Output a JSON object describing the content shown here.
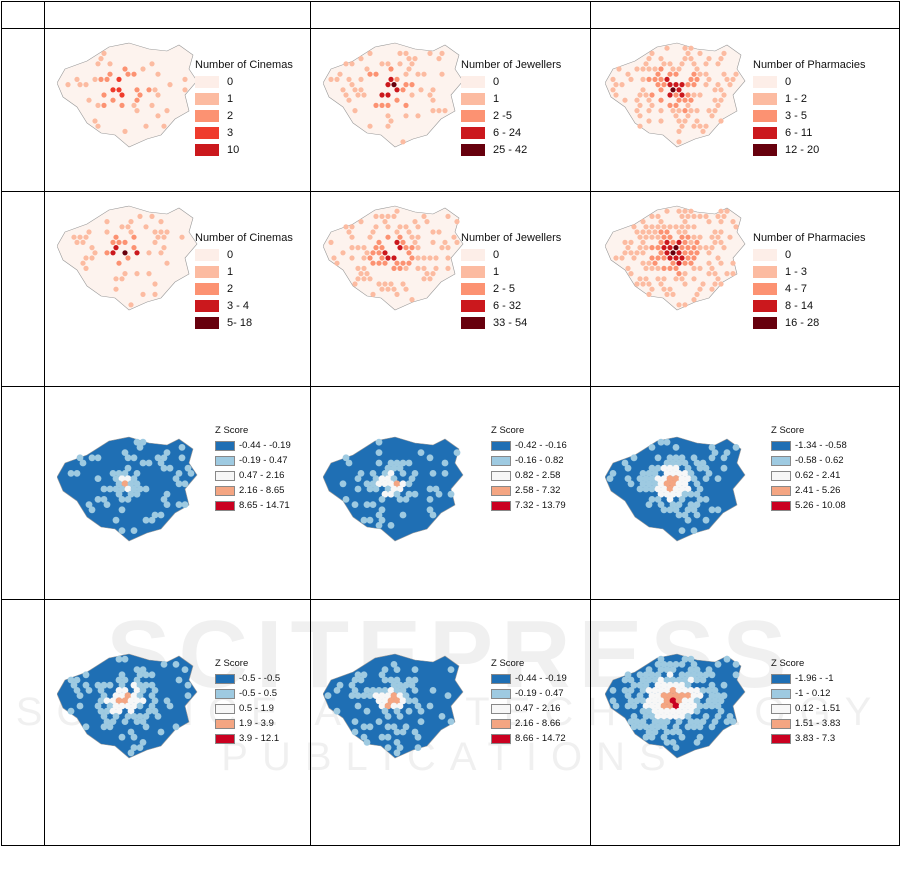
{
  "watermark": {
    "main": "SCITEPRESS",
    "sub": "SCIENCE AND TECHNOLOGY PUBLICATIONS"
  },
  "colors": {
    "count": [
      "#fdeee8",
      "#fcbba1",
      "#fc9272",
      "#ef3b2c",
      "#cb181d",
      "#67000d"
    ],
    "z": [
      "#1f6fb4",
      "#9ecae1",
      "#f7f7f7",
      "#f4a582",
      "#ca0020"
    ]
  },
  "rows": [
    {
      "cells": [
        {
          "type": "count",
          "title": "Number of Cinemas",
          "items": [
            {
              "label": "0",
              "color": "#fdeee8"
            },
            {
              "label": "1",
              "color": "#fcbba1"
            },
            {
              "label": "2",
              "color": "#fc9272"
            },
            {
              "label": "3",
              "color": "#ef3b2c"
            },
            {
              "label": "10",
              "color": "#cb181d"
            }
          ],
          "density": 0.25
        },
        {
          "type": "count",
          "title": "Number of Jewellers",
          "items": [
            {
              "label": "0",
              "color": "#fdeee8"
            },
            {
              "label": "1",
              "color": "#fcbba1"
            },
            {
              "label": "2 -5",
              "color": "#fc9272"
            },
            {
              "label": "6 - 24",
              "color": "#cb181d"
            },
            {
              "label": "25 - 42",
              "color": "#67000d"
            }
          ],
          "density": 0.4
        },
        {
          "type": "count",
          "title": "Number of Pharmacies",
          "items": [
            {
              "label": "0",
              "color": "#fdeee8"
            },
            {
              "label": "1 - 2",
              "color": "#fcbba1"
            },
            {
              "label": "3 - 5",
              "color": "#fc9272"
            },
            {
              "label": "6 - 11",
              "color": "#cb181d"
            },
            {
              "label": "12 - 20",
              "color": "#67000d"
            }
          ],
          "density": 0.75
        }
      ]
    },
    {
      "cells": [
        {
          "type": "count",
          "title": "Number of Cinemas",
          "items": [
            {
              "label": "0",
              "color": "#fdeee8"
            },
            {
              "label": "1",
              "color": "#fcbba1"
            },
            {
              "label": "2",
              "color": "#fc9272"
            },
            {
              "label": "3 - 4",
              "color": "#cb181d"
            },
            {
              "label": "5- 18",
              "color": "#67000d"
            }
          ],
          "density": 0.3
        },
        {
          "type": "count",
          "title": "Number of Jewellers",
          "items": [
            {
              "label": "0",
              "color": "#fdeee8"
            },
            {
              "label": "1",
              "color": "#fcbba1"
            },
            {
              "label": "2 - 5",
              "color": "#fc9272"
            },
            {
              "label": "6 - 32",
              "color": "#cb181d"
            },
            {
              "label": "33 - 54",
              "color": "#67000d"
            }
          ],
          "density": 0.55
        },
        {
          "type": "count",
          "title": "Number of Pharmacies",
          "items": [
            {
              "label": "0",
              "color": "#fdeee8"
            },
            {
              "label": "1 - 3",
              "color": "#fcbba1"
            },
            {
              "label": "4 - 7",
              "color": "#fc9272"
            },
            {
              "label": "8 - 14",
              "color": "#cb181d"
            },
            {
              "label": "16 - 28",
              "color": "#67000d"
            }
          ],
          "density": 0.9
        }
      ]
    },
    {
      "cells": [
        {
          "type": "z",
          "title": "Z Score",
          "items": [
            {
              "label": "-0.44 - -0.19",
              "color": "#1f6fb4"
            },
            {
              "label": "-0.19 - 0.47",
              "color": "#9ecae1"
            },
            {
              "label": "0.47 - 2.16",
              "color": "#f7f7f7"
            },
            {
              "label": "2.16 - 8.65",
              "color": "#f4a582"
            },
            {
              "label": "8.65 - 14.71",
              "color": "#ca0020"
            }
          ],
          "spread": 0.5
        },
        {
          "type": "z",
          "title": "Z Score",
          "items": [
            {
              "label": "-0.42 - -0.16",
              "color": "#1f6fb4"
            },
            {
              "label": "-0.16 - 0.82",
              "color": "#9ecae1"
            },
            {
              "label": "0.82 - 2.58",
              "color": "#f7f7f7"
            },
            {
              "label": "2.58 - 7.32",
              "color": "#f4a582"
            },
            {
              "label": "7.32 - 13.79",
              "color": "#ca0020"
            }
          ],
          "spread": 0.6
        },
        {
          "type": "z",
          "title": "Z Score",
          "items": [
            {
              "label": "-1.34 - -0.58",
              "color": "#1f6fb4"
            },
            {
              "label": "-0.58 - 0.62",
              "color": "#9ecae1"
            },
            {
              "label": "0.62 - 2.41",
              "color": "#f7f7f7"
            },
            {
              "label": "2.41 - 5.26",
              "color": "#f4a582"
            },
            {
              "label": "5.26 - 10.08",
              "color": "#ca0020"
            }
          ],
          "spread": 0.9
        }
      ]
    },
    {
      "cells": [
        {
          "type": "z",
          "title": "Z Score",
          "items": [
            {
              "label": "-0.5 - -0.5",
              "color": "#1f6fb4"
            },
            {
              "label": "-0.5 - 0.5",
              "color": "#9ecae1"
            },
            {
              "label": "0.5 - 1.9",
              "color": "#f7f7f7"
            },
            {
              "label": "1.9 - 3.9",
              "color": "#f4a582"
            },
            {
              "label": "3.9 - 12.1",
              "color": "#ca0020"
            }
          ],
          "spread": 0.8
        },
        {
          "type": "z",
          "title": "Z Score",
          "items": [
            {
              "label": "-0.44 - -0.19",
              "color": "#1f6fb4"
            },
            {
              "label": "-0.19 - 0.47",
              "color": "#9ecae1"
            },
            {
              "label": "0.47 - 2.16",
              "color": "#f7f7f7"
            },
            {
              "label": "2.16 - 8.66",
              "color": "#f4a582"
            },
            {
              "label": "8.66 - 14.72",
              "color": "#ca0020"
            }
          ],
          "spread": 0.7
        },
        {
          "type": "z",
          "title": "Z Score",
          "items": [
            {
              "label": "-1.96 - -1",
              "color": "#1f6fb4"
            },
            {
              "label": "-1 - 0.12",
              "color": "#9ecae1"
            },
            {
              "label": "0.12 - 1.51",
              "color": "#f7f7f7"
            },
            {
              "label": "1.51 - 3.83",
              "color": "#f4a582"
            },
            {
              "label": "3.83 - 7.3",
              "color": "#ca0020"
            }
          ],
          "spread": 1.2
        }
      ]
    }
  ]
}
